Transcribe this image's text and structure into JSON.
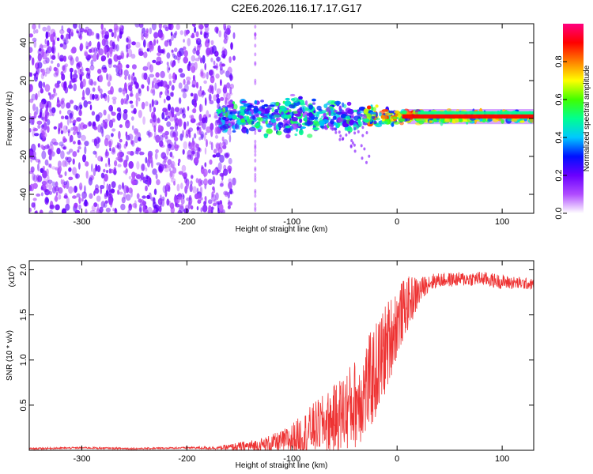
{
  "title": "C2E6.2026.116.17.17.G17",
  "chart_data": [
    {
      "type": "heatmap",
      "title": "C2E6.2026.116.17.17.G17",
      "xlabel": "Height of straight line (km)",
      "ylabel": "Frequency (Hz)",
      "xlim": [
        -350,
        130
      ],
      "ylim": [
        -50,
        50
      ],
      "x_ticks": [
        -300,
        -200,
        -100,
        0,
        100
      ],
      "y_ticks": [
        -40,
        -20,
        0,
        20,
        40
      ],
      "colorbar": {
        "label": "Normalized spectral amplitude",
        "range": [
          0.0,
          1.0
        ],
        "ticks": [
          "0.0",
          "0.2",
          "0.4",
          "0.6",
          "0.8"
        ],
        "colormap": [
          "#ffffff",
          "#b04cff",
          "#6a00ff",
          "#0010ff",
          "#00c8ff",
          "#00ff90",
          "#40ff00",
          "#ffff00",
          "#ff7f00",
          "#ff0000",
          "#ff0080"
        ]
      },
      "features": {
        "noise_region_x": [
          -350,
          -155
        ],
        "signal_start_x": -170,
        "signal_center_freq": 1,
        "signal_spread_hz": [
          [
            -170,
            8
          ],
          [
            -100,
            12
          ],
          [
            -40,
            8
          ],
          [
            0,
            4
          ],
          [
            130,
            3
          ]
        ]
      }
    },
    {
      "type": "line",
      "xlabel": "Height of straight line (km)",
      "ylabel": "SNR (10 * v/v)",
      "scale_note": "(x10",
      "scale_exponent": "4",
      "xlim": [
        -350,
        130
      ],
      "ylim": [
        0,
        2.1
      ],
      "x_ticks": [
        -300,
        -200,
        -100,
        0,
        100
      ],
      "y_ticks": [
        0.5,
        1.0,
        1.5,
        2.0
      ],
      "y_tick_labels": [
        "0.5",
        "1.0",
        "1.5",
        "2.0"
      ],
      "color": "#ee3333",
      "series": [
        {
          "name": "SNR",
          "x": [
            -350,
            -300,
            -250,
            -200,
            -170,
            -150,
            -130,
            -110,
            -100,
            -90,
            -80,
            -70,
            -60,
            -50,
            -40,
            -30,
            -20,
            -15,
            -10,
            -5,
            0,
            5,
            10,
            15,
            20,
            25,
            30,
            40,
            60,
            80,
            100,
            130
          ],
          "y": [
            0.02,
            0.03,
            0.02,
            0.03,
            0.03,
            0.05,
            0.07,
            0.12,
            0.16,
            0.22,
            0.3,
            0.36,
            0.42,
            0.52,
            0.62,
            0.78,
            0.98,
            1.12,
            1.25,
            1.38,
            1.5,
            1.6,
            1.68,
            1.74,
            1.78,
            1.83,
            1.88,
            1.9,
            1.91,
            1.92,
            1.88,
            1.85
          ],
          "noise_amplitude": [
            0.01,
            0.01,
            0.01,
            0.01,
            0.02,
            0.05,
            0.08,
            0.12,
            0.18,
            0.22,
            0.28,
            0.32,
            0.38,
            0.45,
            0.5,
            0.55,
            0.55,
            0.55,
            0.5,
            0.45,
            0.4,
            0.35,
            0.3,
            0.25,
            0.18,
            0.12,
            0.1,
            0.08,
            0.08,
            0.08,
            0.08,
            0.06
          ]
        }
      ]
    }
  ]
}
